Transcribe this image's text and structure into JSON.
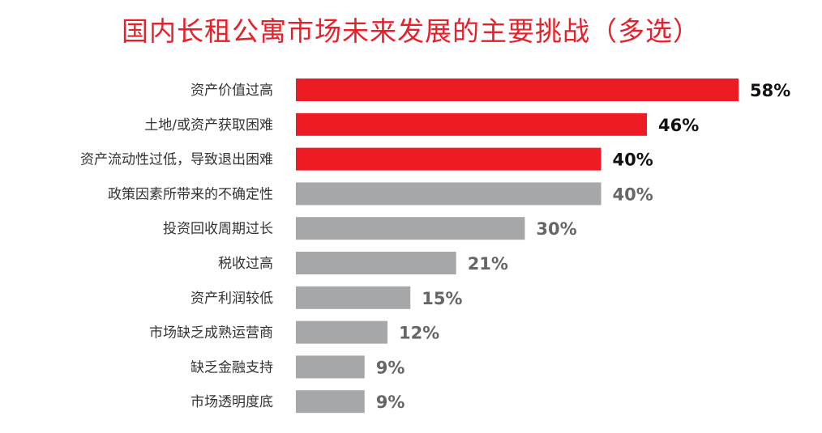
{
  "chart_data": {
    "type": "bar",
    "orientation": "horizontal",
    "title": "国内长租公寓市场未来发展的主要挑战（多选）",
    "categories": [
      "资产价值过高",
      "土地/或资产获取困难",
      "资产流动性过低，导致退出困难",
      "政策因素所带来的不确定性",
      "投资回收周期过长",
      "税收过高",
      "资产利润较低",
      "市场缺乏成熟运营商",
      "缺乏金融支持",
      "市场透明度底"
    ],
    "values": [
      58,
      46,
      40,
      40,
      30,
      21,
      15,
      12,
      9,
      9
    ],
    "value_labels": [
      "58%",
      "46%",
      "40%",
      "40%",
      "30%",
      "21%",
      "15%",
      "12%",
      "9%",
      "9%"
    ],
    "highlighted": [
      true,
      true,
      true,
      false,
      false,
      false,
      false,
      false,
      false,
      false
    ],
    "unit": "%",
    "xlim": [
      0,
      58
    ],
    "grid": false,
    "colors": {
      "highlight": "#ed1c24",
      "normal": "#a5a7a8",
      "highlight_label": "#111111",
      "normal_label": "#666666",
      "title": "#e8202a",
      "category_label": "#333333"
    }
  }
}
